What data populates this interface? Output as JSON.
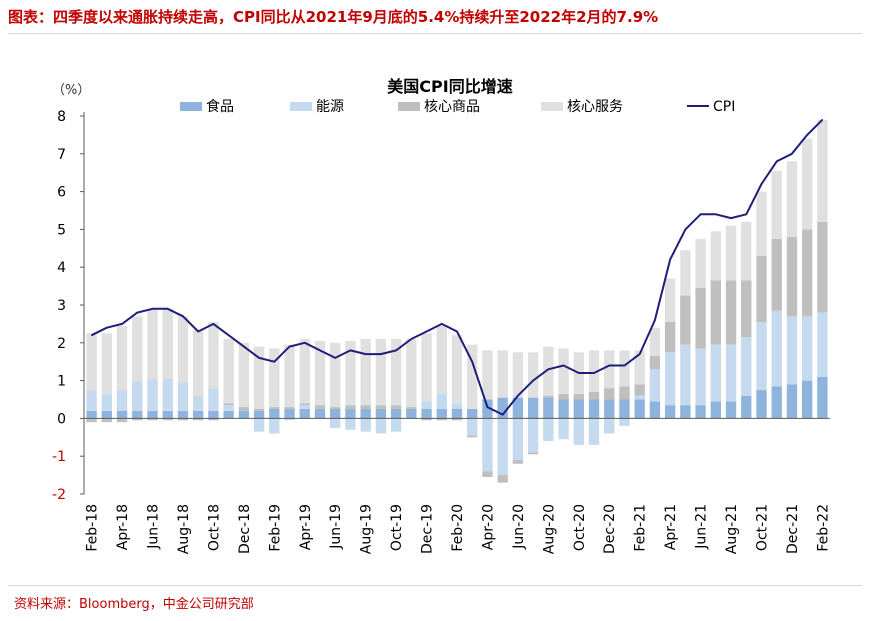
{
  "header": {
    "title": "图表：四季度以来通胀持续走高，CPI同比从2021年9月底的5.4%持续升至2022年2月的7.9%"
  },
  "footer": {
    "source": "资料来源：Bloomberg，中金公司研究部"
  },
  "colors": {
    "food": "#8eb4dd",
    "energy": "#c5d9ef",
    "core_goods": "#bfbfbf",
    "core_services": "#e0e0e0",
    "cpi": "#1f1f7a",
    "neg_tick": "#c00000"
  },
  "chart_data": {
    "type": "bar",
    "title": "美国CPI同比增速",
    "unit_label": "（%）",
    "ylim": [
      -2,
      8
    ],
    "yticks": [
      "-2",
      "-1",
      "0",
      "1",
      "2",
      "3",
      "4",
      "5",
      "6",
      "7",
      "8"
    ],
    "legend": [
      "食品",
      "能源",
      "核心商品",
      "核心服务",
      "CPI"
    ],
    "categories": [
      "Feb-18",
      "Mar-18",
      "Apr-18",
      "May-18",
      "Jun-18",
      "Jul-18",
      "Aug-18",
      "Sep-18",
      "Oct-18",
      "Nov-18",
      "Dec-18",
      "Jan-19",
      "Feb-19",
      "Mar-19",
      "Apr-19",
      "May-19",
      "Jun-19",
      "Jul-19",
      "Aug-19",
      "Sep-19",
      "Oct-19",
      "Nov-19",
      "Dec-19",
      "Jan-20",
      "Feb-20",
      "Mar-20",
      "Apr-20",
      "May-20",
      "Jun-20",
      "Jul-20",
      "Aug-20",
      "Sep-20",
      "Oct-20",
      "Nov-20",
      "Dec-20",
      "Jan-21",
      "Feb-21",
      "Mar-21",
      "Apr-21",
      "May-21",
      "Jun-21",
      "Jul-21",
      "Aug-21",
      "Sep-21",
      "Oct-21",
      "Nov-21",
      "Dec-21",
      "Jan-22",
      "Feb-22"
    ],
    "tick_labels": [
      "Feb-18",
      "Apr-18",
      "Jun-18",
      "Aug-18",
      "Oct-18",
      "Dec-18",
      "Feb-19",
      "Apr-19",
      "Jun-19",
      "Aug-19",
      "Oct-19",
      "Dec-19",
      "Feb-20",
      "Apr-20",
      "Jun-20",
      "Aug-20",
      "Oct-20",
      "Dec-20",
      "Feb-21",
      "Apr-21",
      "Jun-21",
      "Aug-21",
      "Oct-21",
      "Dec-21",
      "Feb-22"
    ],
    "series": [
      {
        "name": "食品",
        "values": [
          0.2,
          0.2,
          0.2,
          0.2,
          0.2,
          0.2,
          0.2,
          0.2,
          0.2,
          0.2,
          0.2,
          0.2,
          0.25,
          0.25,
          0.25,
          0.25,
          0.25,
          0.25,
          0.25,
          0.25,
          0.25,
          0.25,
          0.25,
          0.25,
          0.25,
          0.25,
          0.5,
          0.55,
          0.55,
          0.55,
          0.55,
          0.5,
          0.5,
          0.5,
          0.5,
          0.5,
          0.5,
          0.45,
          0.35,
          0.35,
          0.35,
          0.45,
          0.45,
          0.6,
          0.75,
          0.85,
          0.9,
          1.0,
          1.1
        ]
      },
      {
        "name": "能源",
        "values": [
          0.55,
          0.45,
          0.55,
          0.8,
          0.85,
          0.85,
          0.75,
          0.4,
          0.6,
          0.15,
          0.0,
          -0.35,
          -0.4,
          -0.05,
          0.1,
          0.0,
          -0.25,
          -0.3,
          -0.35,
          -0.4,
          -0.35,
          0.0,
          0.2,
          0.4,
          0.15,
          -0.45,
          -1.4,
          -1.5,
          -1.1,
          -0.9,
          -0.6,
          -0.55,
          -0.7,
          -0.7,
          -0.4,
          -0.2,
          0.1,
          0.85,
          1.4,
          1.6,
          1.5,
          1.5,
          1.5,
          1.55,
          1.8,
          2.0,
          1.8,
          1.7,
          1.7
        ]
      },
      {
        "name": "核心商品",
        "values": [
          -0.1,
          -0.1,
          -0.1,
          -0.05,
          -0.05,
          -0.05,
          -0.05,
          -0.05,
          -0.05,
          0.05,
          0.1,
          0.05,
          0.05,
          0.05,
          0.05,
          0.1,
          0.05,
          0.1,
          0.1,
          0.1,
          0.1,
          0.05,
          -0.05,
          -0.05,
          -0.05,
          -0.05,
          -0.15,
          -0.2,
          -0.1,
          -0.05,
          0.05,
          0.15,
          0.15,
          0.2,
          0.3,
          0.35,
          0.3,
          0.35,
          0.8,
          1.3,
          1.6,
          1.7,
          1.7,
          1.5,
          1.75,
          1.9,
          2.1,
          2.3,
          2.4
        ]
      },
      {
        "name": "核心服务",
        "values": [
          1.5,
          1.6,
          1.7,
          1.7,
          1.85,
          1.85,
          1.75,
          1.75,
          1.75,
          1.7,
          1.7,
          1.65,
          1.55,
          1.65,
          1.7,
          1.7,
          1.7,
          1.7,
          1.75,
          1.75,
          1.75,
          1.8,
          1.8,
          1.8,
          1.8,
          1.7,
          1.3,
          1.25,
          1.2,
          1.2,
          1.3,
          1.2,
          1.1,
          1.1,
          1.0,
          0.95,
          0.9,
          0.75,
          1.15,
          1.2,
          1.3,
          1.3,
          1.45,
          1.55,
          1.7,
          1.8,
          2.0,
          2.4,
          2.7
        ]
      },
      {
        "name": "CPI",
        "values": [
          2.2,
          2.4,
          2.5,
          2.8,
          2.9,
          2.9,
          2.7,
          2.3,
          2.5,
          2.2,
          1.9,
          1.6,
          1.5,
          1.9,
          2.0,
          1.8,
          1.6,
          1.8,
          1.7,
          1.7,
          1.8,
          2.1,
          2.3,
          2.5,
          2.3,
          1.5,
          0.3,
          0.1,
          0.6,
          1.0,
          1.3,
          1.4,
          1.2,
          1.2,
          1.4,
          1.4,
          1.7,
          2.6,
          4.2,
          5.0,
          5.4,
          5.4,
          5.3,
          5.4,
          6.2,
          6.8,
          7.0,
          7.5,
          7.9
        ]
      }
    ]
  }
}
